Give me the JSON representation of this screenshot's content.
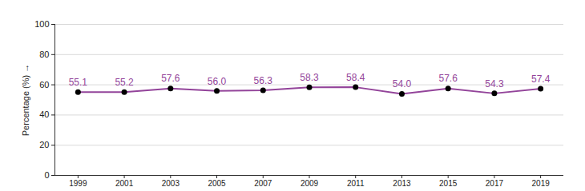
{
  "chart_data": {
    "type": "line",
    "x": [
      1999,
      2001,
      2003,
      2005,
      2007,
      2009,
      2011,
      2013,
      2015,
      2017,
      2019
    ],
    "values": [
      55.1,
      55.2,
      57.6,
      56.0,
      56.3,
      58.3,
      58.4,
      54.0,
      57.6,
      54.3,
      57.4
    ],
    "value_labels": [
      "55.1",
      "55.2",
      "57.6",
      "56.0",
      "56.3",
      "58.3",
      "58.4",
      "54.0",
      "57.6",
      "54.3",
      "57.4"
    ],
    "y_label": "Percentage (%)",
    "color": "#93449a",
    "marker": "circle",
    "data_labels": true,
    "grid": true,
    "xlim": [
      1998,
      2020
    ],
    "xticks": [
      1999,
      2001,
      2003,
      2005,
      2007,
      2009,
      2011,
      2013,
      2015,
      2017,
      2019
    ],
    "ylim": [
      0,
      100
    ],
    "yticks": [
      0,
      20,
      40,
      60,
      80,
      100
    ]
  }
}
